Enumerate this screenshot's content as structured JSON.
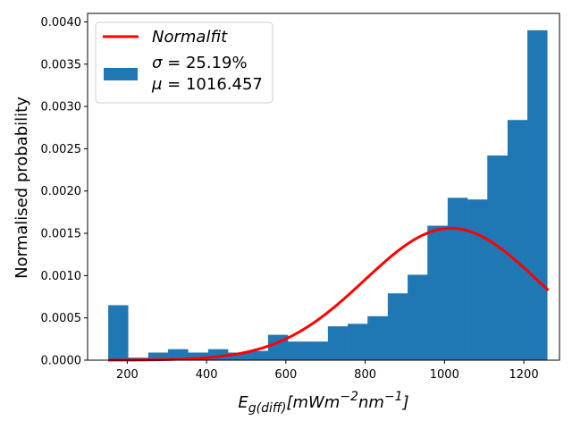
{
  "chart_data": {
    "type": "bar",
    "title": "",
    "xlabel": "E",
    "xlabel_subscript": "g(diff)",
    "xlabel_unit_prefix": "[mWm",
    "xlabel_unit_exp1": "−2",
    "xlabel_unit_mid": "nm",
    "xlabel_unit_exp2": "−1",
    "xlabel_unit_suffix": "]",
    "ylabel": "Normalised probability",
    "xlim": [
      100,
      1290
    ],
    "ylim": [
      0,
      0.0041
    ],
    "xticks": [
      200,
      400,
      600,
      800,
      1000,
      1200
    ],
    "xtick_labels": [
      "200",
      "400",
      "600",
      "800",
      "1000",
      "1200"
    ],
    "yticks": [
      0,
      0.0005,
      0.001,
      0.0015,
      0.002,
      0.0025,
      0.003,
      0.0035,
      0.004
    ],
    "ytick_labels": [
      "0.0000",
      "0.0005",
      "0.0010",
      "0.0015",
      "0.0020",
      "0.0025",
      "0.0030",
      "0.0035",
      "0.0040"
    ],
    "bin_edges": [
      152,
      202,
      253,
      303,
      353,
      404,
      454,
      504,
      555,
      605,
      655,
      706,
      756,
      806,
      857,
      907,
      957,
      1008,
      1058,
      1108,
      1159,
      1209,
      1259
    ],
    "bin_values": [
      0.00065,
      3e-05,
      9e-05,
      0.00013,
      9e-05,
      0.00013,
      9e-05,
      0.00011,
      0.0003,
      0.00022,
      0.00022,
      0.0004,
      0.00043,
      0.00052,
      0.00079,
      0.00101,
      0.00159,
      0.00192,
      0.0019,
      0.00242,
      0.00284,
      0.0039
    ],
    "fit": {
      "mu": 1016.457,
      "sigma": 25.19,
      "peak": 0.00156,
      "x_start": 152,
      "x_end": 1262
    },
    "legend": {
      "position": "top-left",
      "fit_label": "Normalfit",
      "sigma_symbol": "σ",
      "sigma_text": " = 25.19%",
      "mu_symbol": "μ",
      "mu_text": " = 1016.457"
    },
    "colors": {
      "bars": "#1f77b4",
      "fit": "#ff0000"
    }
  }
}
